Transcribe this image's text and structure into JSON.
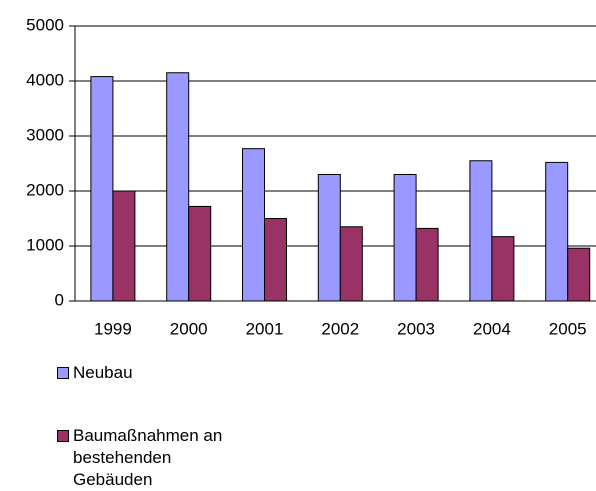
{
  "chart_data": {
    "type": "bar",
    "categories": [
      "1999",
      "2000",
      "2001",
      "2002",
      "2003",
      "2004",
      "2005"
    ],
    "series": [
      {
        "name": "Neubau",
        "color": "#9999ff",
        "values": [
          4080,
          4150,
          2770,
          2300,
          2300,
          2550,
          2520
        ]
      },
      {
        "name": "Baumaßnahmen an bestehenden Gebäuden",
        "color": "#993366",
        "values": [
          2000,
          1720,
          1500,
          1350,
          1320,
          1170,
          960
        ]
      }
    ],
    "ylim": [
      0,
      5000
    ],
    "yticks": [
      0,
      1000,
      2000,
      3000,
      4000,
      5000
    ],
    "grid": true
  }
}
